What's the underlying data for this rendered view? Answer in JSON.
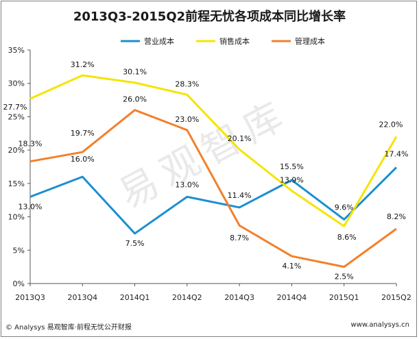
{
  "footer": {
    "source": "© Analysys 易观智库·前程无忧公开财报",
    "url": "www.analysys.cn"
  },
  "watermark": "易观智库",
  "chart_data": {
    "type": "line",
    "title": "2013Q3-2015Q2前程无忧各项成本同比增长率",
    "categories": [
      "2013Q3",
      "2013Q4",
      "2014Q1",
      "2014Q2",
      "2014Q3",
      "2014Q4",
      "2015Q1",
      "2015Q2"
    ],
    "y_ticks": [
      "0%",
      "5%",
      "10%",
      "15%",
      "20%",
      "25%",
      "30%",
      "35%"
    ],
    "ylim": [
      0,
      35
    ],
    "legend_position": "top",
    "grid": false,
    "series": [
      {
        "name": "营业成本",
        "color": "#1a8fd0",
        "values": [
          13.0,
          16.0,
          7.5,
          13.0,
          11.4,
          15.5,
          9.6,
          17.4
        ],
        "labels": [
          "13.0%",
          "16.0%",
          "7.5%",
          "13.0%",
          "11.4%",
          "15.5%",
          "9.6%",
          "17.4%"
        ]
      },
      {
        "name": "销售成本",
        "color": "#f5e400",
        "values": [
          27.7,
          31.2,
          30.1,
          28.3,
          20.1,
          13.9,
          8.6,
          22.0
        ],
        "labels": [
          "27.7%",
          "31.2%",
          "30.1%",
          "28.3%",
          "20.1%",
          "13.9%",
          "8.6%",
          "22.0%"
        ]
      },
      {
        "name": "管理成本",
        "color": "#f37f2a",
        "values": [
          18.3,
          19.7,
          26.0,
          23.0,
          8.7,
          4.1,
          2.5,
          8.2
        ],
        "labels": [
          "18.3%",
          "19.7%",
          "26.0%",
          "23.0%",
          "8.7%",
          "4.1%",
          "2.5%",
          "8.2%"
        ]
      }
    ]
  }
}
